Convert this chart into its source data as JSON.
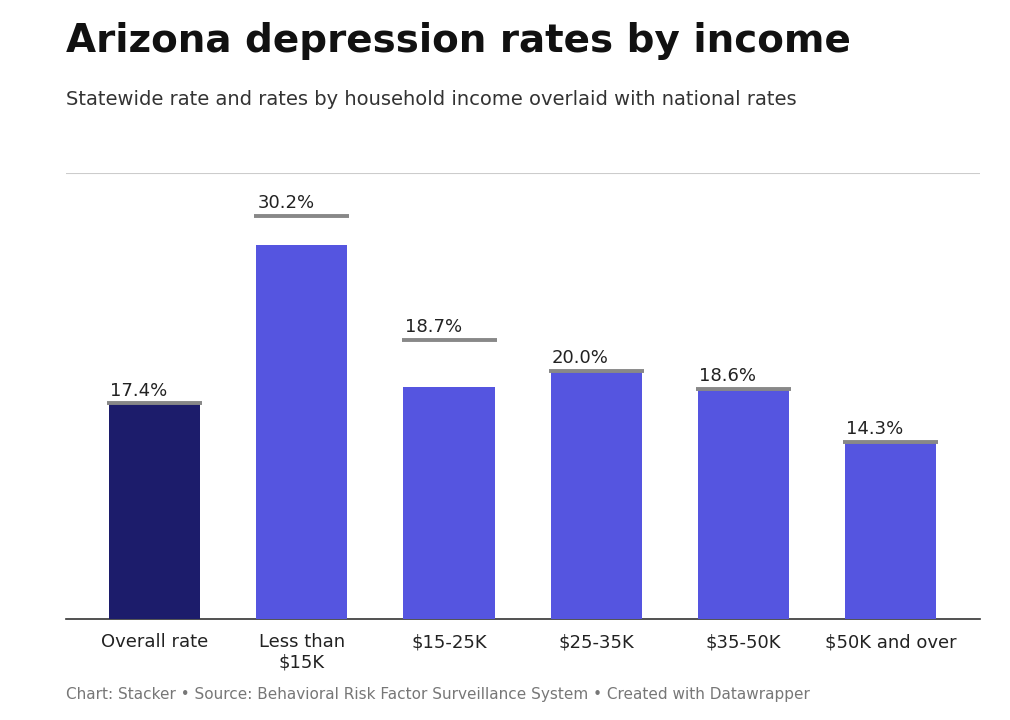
{
  "title": "Arizona depression rates by income",
  "subtitle": "Statewide rate and rates by household income overlaid with national rates",
  "footer": "Chart: Stacker • Source: Behavioral Risk Factor Surveillance System • Created with Datawrapper",
  "categories": [
    "Overall rate",
    "Less than\n$15K",
    "$15-25K",
    "$25-35K",
    "$35-50K",
    "$50K and over"
  ],
  "values": [
    17.4,
    30.2,
    18.7,
    20.0,
    18.6,
    14.3
  ],
  "national_line_heights": [
    17.4,
    32.5,
    22.5,
    20.0,
    18.6,
    14.3
  ],
  "bar_colors": [
    "#1c1c6b",
    "#5555e0",
    "#5555e0",
    "#5555e0",
    "#5555e0",
    "#5555e0"
  ],
  "national_line_color": "#888888",
  "label_color": "#222222",
  "background_color": "#ffffff",
  "title_fontsize": 28,
  "subtitle_fontsize": 14,
  "footer_fontsize": 11,
  "value_fontsize": 13,
  "tick_fontsize": 13,
  "ylim": [
    0,
    36
  ]
}
